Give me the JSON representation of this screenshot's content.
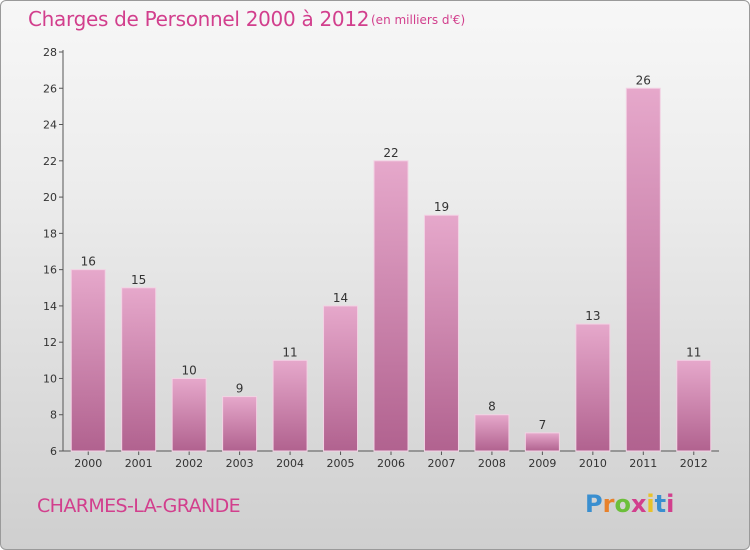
{
  "title": "Charges de Personnel 2000 à 2012",
  "subtitle": "(en milliers d'€)",
  "commune": "CHARMES-LA-GRANDE",
  "logo": {
    "text": "Proxiti",
    "colors": [
      "#3a8fd0",
      "#e8812a",
      "#6cbf3a",
      "#d23f8d",
      "#e8c22a",
      "#3a8fd0",
      "#d23f8d"
    ]
  },
  "colors": {
    "accent": "#d23f8d",
    "bar_top": "#e6a8cb",
    "bar_bottom": "#b1628f",
    "bar_edge": "#f3d2e4",
    "axis": "#555555"
  },
  "chart_data": {
    "type": "bar",
    "title": "Charges de Personnel 2000 à 2012",
    "xlabel": "",
    "ylabel": "",
    "categories": [
      "2000",
      "2001",
      "2002",
      "2003",
      "2004",
      "2005",
      "2006",
      "2007",
      "2008",
      "2009",
      "2010",
      "2011",
      "2012"
    ],
    "values": [
      16,
      15,
      10,
      9,
      11,
      14,
      22,
      19,
      8,
      7,
      13,
      26,
      11
    ],
    "ylim": [
      6,
      28
    ],
    "yticks": [
      6,
      8,
      10,
      12,
      14,
      16,
      18,
      20,
      22,
      24,
      26,
      28
    ],
    "grid": false,
    "legend": "none"
  }
}
